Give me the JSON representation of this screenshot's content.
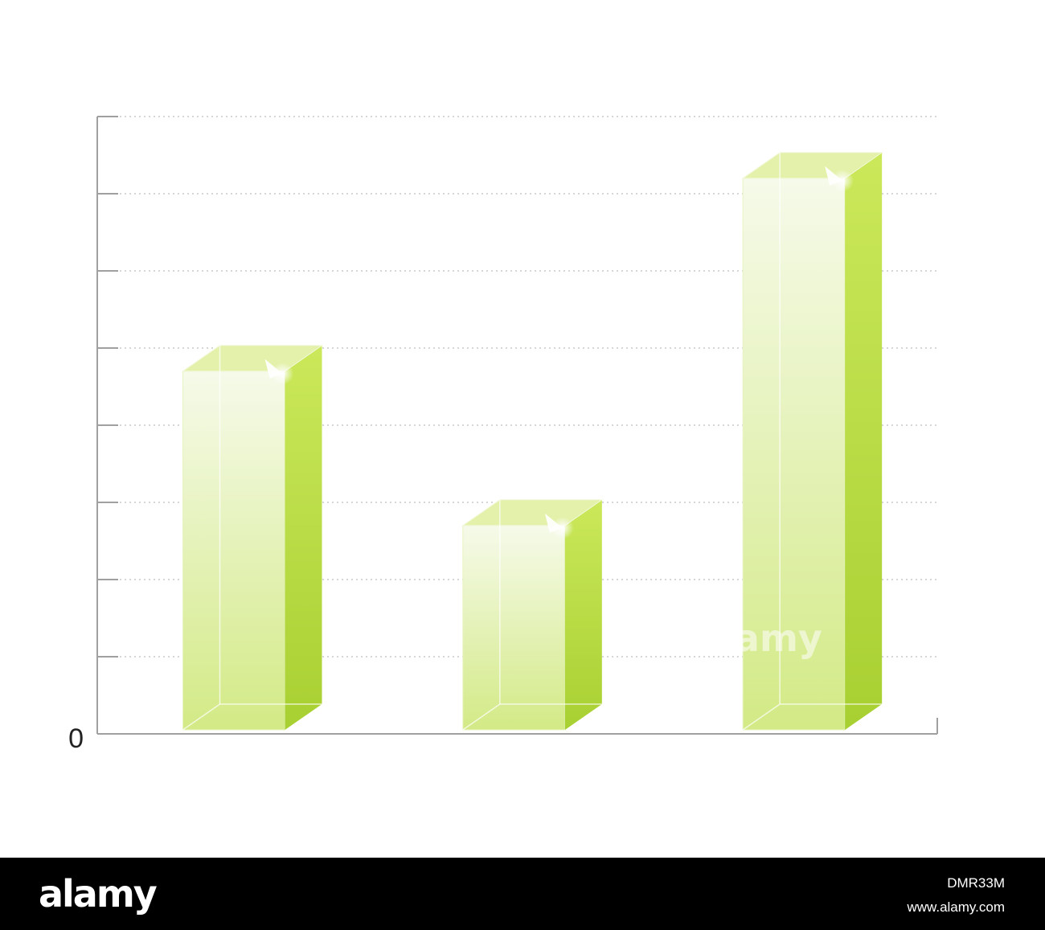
{
  "chart_data": {
    "type": "bar",
    "categories": [
      "",
      "",
      ""
    ],
    "values": [
      4.7,
      2.7,
      7.2
    ],
    "ylim": [
      0,
      8
    ],
    "y_tick_labels": [
      "0"
    ],
    "grid": true,
    "grid_style": "dotted-horizontal",
    "bar_style": "3d-glass",
    "colors": {
      "bar_front_top": "#f4f9e2",
      "bar_front_bottom": "#d3ea86",
      "bar_side_top": "#c4e548",
      "bar_side_bottom": "#a6cf2f",
      "bar_top_face": "#e3f1aa",
      "axis": "#a0a0a0",
      "grid": "#c8c8c8"
    }
  },
  "watermark": {
    "logo_text": "alamy",
    "image_id": "DMR33M",
    "url": "www.alamy.com"
  }
}
